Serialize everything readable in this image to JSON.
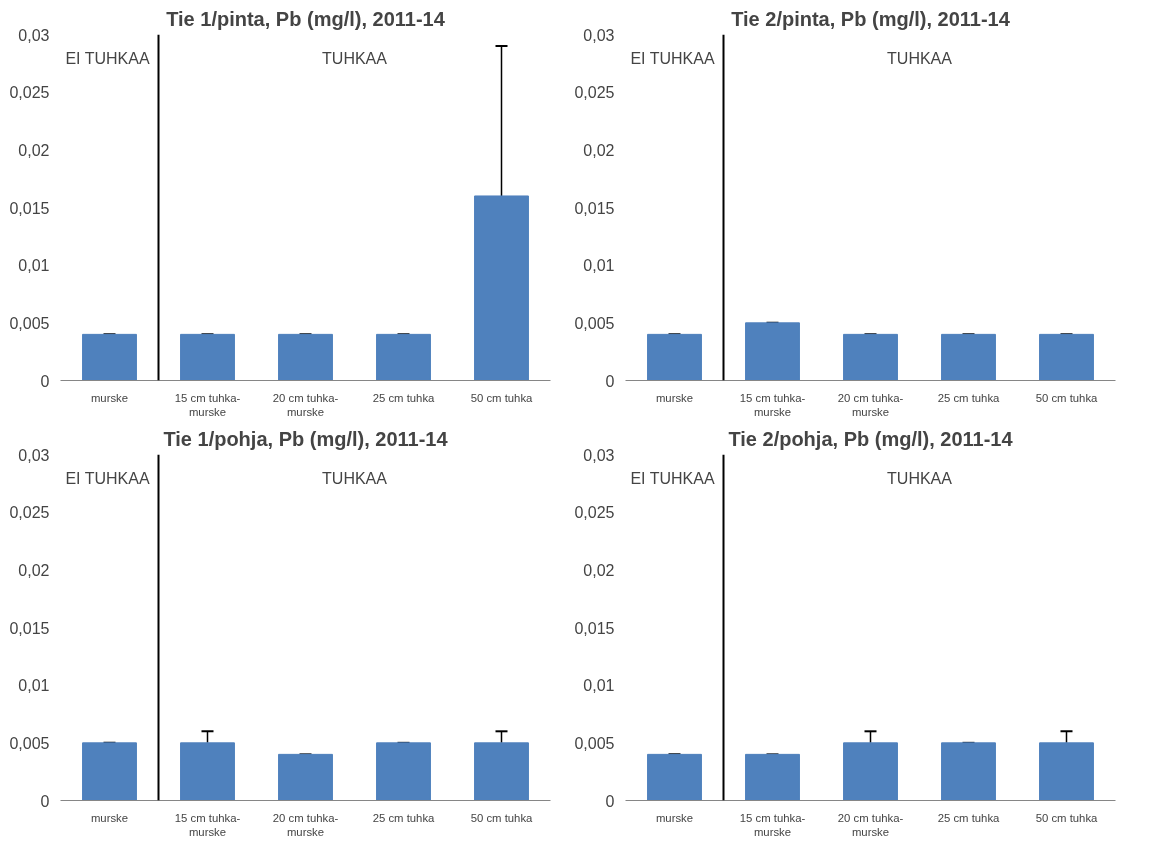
{
  "chart_data": [
    {
      "type": "bar",
      "title": "Tie 1/pinta, Pb (mg/l), 2011-14",
      "categories": [
        "murske",
        "15 cm tuhka-\nmurske",
        "20 cm tuhka-\nmurske",
        "25 cm tuhka",
        "50 cm tuhka"
      ],
      "values": [
        0.004,
        0.004,
        0.004,
        0.004,
        0.016
      ],
      "errors": [
        [
          0.004,
          0.004
        ],
        [
          0.004,
          0.004
        ],
        [
          0.004,
          0.004
        ],
        [
          0.004,
          0.004
        ],
        [
          0.016,
          0.029
        ]
      ],
      "color": "#4f81bd",
      "ylim": [
        0,
        0.03
      ],
      "yticks": [
        0,
        {
          "value": 0.005,
          "label": "0,005"
        },
        {
          "value": 0.01,
          "label": "0,01"
        },
        {
          "value": 0.015,
          "label": "0,015"
        },
        {
          "value": 0.02,
          "label": "0,02"
        },
        {
          "value": 0.025,
          "label": "0,025"
        },
        {
          "value": 0.03,
          "label": "0,03"
        }
      ],
      "grid": false,
      "annotations": [
        "EI TUHKAA",
        "TUHKAA"
      ]
    },
    {
      "type": "bar",
      "title": "Tie 2/pinta, Pb (mg/l), 2011-14",
      "categories": [
        "murske",
        "15 cm tuhka-\nmurske",
        "20 cm tuhka-\nmurske",
        "25 cm tuhka",
        "50 cm tuhka"
      ],
      "values": [
        0.004,
        0.005,
        0.004,
        0.004,
        0.004
      ],
      "errors": [
        [
          0.004,
          0.004
        ],
        [
          0.005,
          0.005
        ],
        [
          0.004,
          0.004
        ],
        [
          0.004,
          0.004
        ],
        [
          0.004,
          0.004
        ]
      ],
      "color": "#4f81bd",
      "ylim": [
        0,
        0.03
      ],
      "yticks": [
        0,
        {
          "value": 0.005,
          "label": "0,005"
        },
        {
          "value": 0.01,
          "label": "0,01"
        },
        {
          "value": 0.015,
          "label": "0,015"
        },
        {
          "value": 0.02,
          "label": "0,02"
        },
        {
          "value": 0.025,
          "label": "0,025"
        },
        {
          "value": 0.03,
          "label": "0,03"
        }
      ],
      "grid": false,
      "annotations": [
        "EI TUHKAA",
        "TUHKAA"
      ]
    },
    {
      "type": "bar",
      "title": "Tie 1/pohja, Pb (mg/l), 2011-14",
      "categories": [
        "murske",
        "15 cm tuhka-\nmurske",
        "20 cm tuhka-\nmurske",
        "25 cm tuhka",
        "50 cm tuhka"
      ],
      "values": [
        0.005,
        0.005,
        0.004,
        0.005,
        0.005
      ],
      "errors": [
        [
          0.005,
          0.005
        ],
        [
          0.005,
          0.006
        ],
        [
          0.004,
          0.004
        ],
        [
          0.005,
          0.005
        ],
        [
          0.005,
          0.006
        ]
      ],
      "color": "#4f81bd",
      "ylim": [
        0,
        0.03
      ],
      "yticks": [
        0,
        {
          "value": 0.005,
          "label": "0,005"
        },
        {
          "value": 0.01,
          "label": "0,01"
        },
        {
          "value": 0.015,
          "label": "0,015"
        },
        {
          "value": 0.02,
          "label": "0,02"
        },
        {
          "value": 0.025,
          "label": "0,025"
        },
        {
          "value": 0.03,
          "label": "0,03"
        }
      ],
      "grid": false,
      "annotations": [
        "EI TUHKAA",
        "TUHKAA"
      ]
    },
    {
      "type": "bar",
      "title": "Tie 2/pohja, Pb (mg/l), 2011-14",
      "categories": [
        "murske",
        "15 cm tuhka-\nmurske",
        "20 cm tuhka-\nmurske",
        "25 cm tuhka",
        "50 cm tuhka"
      ],
      "values": [
        0.004,
        0.004,
        0.005,
        0.005,
        0.005
      ],
      "errors": [
        [
          0.004,
          0.004
        ],
        [
          0.004,
          0.004
        ],
        [
          0.005,
          0.006
        ],
        [
          0.005,
          0.005
        ],
        [
          0.005,
          0.006
        ]
      ],
      "color": "#4f81bd",
      "ylim": [
        0,
        0.03
      ],
      "yticks": [
        0,
        {
          "value": 0.005,
          "label": "0,005"
        },
        {
          "value": 0.01,
          "label": "0,01"
        },
        {
          "value": 0.015,
          "label": "0,015"
        },
        {
          "value": 0.02,
          "label": "0,02"
        },
        {
          "value": 0.025,
          "label": "0,025"
        },
        {
          "value": 0.03,
          "label": "0,03"
        }
      ],
      "grid": false,
      "annotations": [
        "EI TUHKAA",
        "TUHKAA"
      ]
    }
  ]
}
